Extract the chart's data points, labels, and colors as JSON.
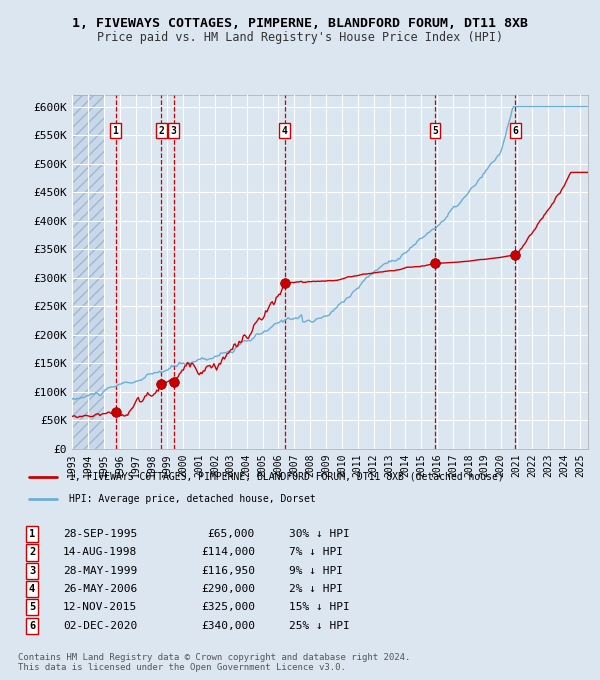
{
  "title": "1, FIVEWAYS COTTAGES, PIMPERNE, BLANDFORD FORUM, DT11 8XB",
  "subtitle": "Price paid vs. HM Land Registry's House Price Index (HPI)",
  "background_color": "#dce6f1",
  "plot_bg_color": "#dce6f1",
  "hatch_color": "#c0cfe0",
  "grid_color": "#ffffff",
  "hpi_color": "#6baed6",
  "price_color": "#cc0000",
  "sale_marker_color": "#cc0000",
  "vline_color": "#cc0000",
  "sales": [
    {
      "num": 1,
      "date_x": 1995.74,
      "price": 65000
    },
    {
      "num": 2,
      "date_x": 1998.62,
      "price": 114000
    },
    {
      "num": 3,
      "date_x": 1999.41,
      "price": 116950
    },
    {
      "num": 4,
      "date_x": 2006.4,
      "price": 290000
    },
    {
      "num": 5,
      "date_x": 2015.87,
      "price": 325000
    },
    {
      "num": 6,
      "date_x": 2020.92,
      "price": 340000
    }
  ],
  "ylim": [
    0,
    620000
  ],
  "yticks": [
    0,
    50000,
    100000,
    150000,
    200000,
    250000,
    300000,
    350000,
    400000,
    450000,
    500000,
    550000,
    600000
  ],
  "ytick_labels": [
    "£0",
    "£50K",
    "£100K",
    "£150K",
    "£200K",
    "£250K",
    "£300K",
    "£350K",
    "£400K",
    "£450K",
    "£500K",
    "£550K",
    "£600K"
  ],
  "xlim_start": 1993.0,
  "xlim_end": 2025.5,
  "table_rows": [
    {
      "num": 1,
      "date": "28-SEP-1995",
      "price": "£65,000",
      "pct": "30% ↓ HPI"
    },
    {
      "num": 2,
      "date": "14-AUG-1998",
      "price": "£114,000",
      "pct": "7% ↓ HPI"
    },
    {
      "num": 3,
      "date": "28-MAY-1999",
      "price": "£116,950",
      "pct": "9% ↓ HPI"
    },
    {
      "num": 4,
      "date": "26-MAY-2006",
      "price": "£290,000",
      "pct": "2% ↓ HPI"
    },
    {
      "num": 5,
      "date": "12-NOV-2015",
      "price": "£325,000",
      "pct": "15% ↓ HPI"
    },
    {
      "num": 6,
      "date": "02-DEC-2020",
      "price": "£340,000",
      "pct": "25% ↓ HPI"
    }
  ],
  "legend_line1": "1, FIVEWAYS COTTAGES, PIMPERNE, BLANDFORD FORUM, DT11 8XB (detached house)",
  "legend_line2": "HPI: Average price, detached house, Dorset",
  "footer1": "Contains HM Land Registry data © Crown copyright and database right 2024.",
  "footer2": "This data is licensed under the Open Government Licence v3.0."
}
